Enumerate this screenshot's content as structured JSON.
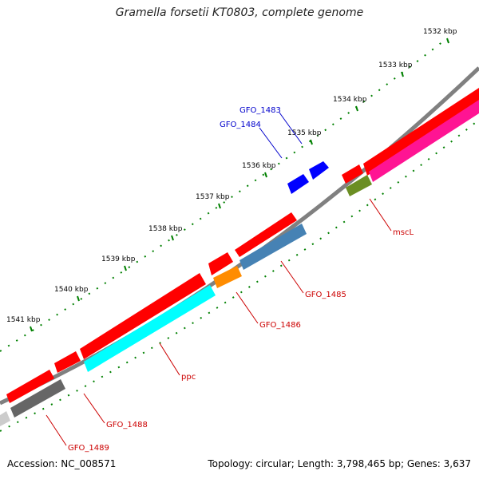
{
  "title": "Gramella forsetii KT0803, complete genome",
  "footer": {
    "accession": "Accession: NC_008571",
    "summary": "Topology: circular; Length: 3,798,465 bp; Genes: 3,637"
  },
  "scale_labels": [
    "1532 kbp",
    "1533 kbp",
    "1534 kbp",
    "1535 kbp",
    "1536 kbp",
    "1537 kbp",
    "1538 kbp",
    "1539 kbp",
    "1540 kbp",
    "1541 kbp"
  ],
  "gene_labels": [
    {
      "text": "GFO_1483",
      "color": "#0000cc"
    },
    {
      "text": "GFO_1484",
      "color": "#0000cc"
    },
    {
      "text": "mscL",
      "color": "#cc0000"
    },
    {
      "text": "GFO_1485",
      "color": "#cc0000"
    },
    {
      "text": "GFO_1486",
      "color": "#cc0000"
    },
    {
      "text": "ppc",
      "color": "#cc0000"
    },
    {
      "text": "GFO_1488",
      "color": "#cc0000"
    },
    {
      "text": "GFO_1489",
      "color": "#cc0000"
    }
  ],
  "colors": {
    "backbone": "#808080",
    "forward_cds": "#ff0000",
    "reverse_cds": "#ff0000",
    "blue_genes": "#0000ff",
    "ticks": "#008000",
    "label_lines": "#cc0000"
  }
}
